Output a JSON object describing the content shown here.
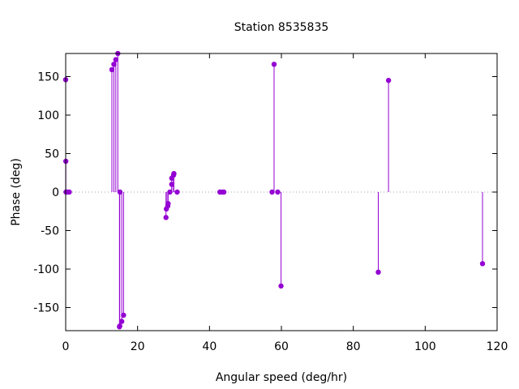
{
  "chart_data": {
    "type": "scatter",
    "style": "impulses-with-points",
    "title": "Station 8535835",
    "xlabel": "Angular speed (deg/hr)",
    "ylabel": "Phase (deg)",
    "xlim": [
      0,
      120
    ],
    "ylim": [
      -180,
      180
    ],
    "xticks": [
      0,
      20,
      40,
      60,
      80,
      100,
      120
    ],
    "yticks": [
      -150,
      -100,
      -50,
      0,
      50,
      100,
      150
    ],
    "zero_line": true,
    "grid": false,
    "legend": "none",
    "color": "#9400d3",
    "series": [
      {
        "points": [
          {
            "x": 0.0,
            "y": 146
          },
          {
            "x": 0.04,
            "y": 40
          },
          {
            "x": 0.08,
            "y": 0
          },
          {
            "x": 0.5,
            "y": 0
          },
          {
            "x": 1.0,
            "y": 0
          },
          {
            "x": 12.85,
            "y": 159
          },
          {
            "x": 13.4,
            "y": 166
          },
          {
            "x": 13.94,
            "y": 172
          },
          {
            "x": 14.5,
            "y": 180
          },
          {
            "x": 14.96,
            "y": -175
          },
          {
            "x": 15.04,
            "y": -174
          },
          {
            "x": 15.1,
            "y": 0
          },
          {
            "x": 15.6,
            "y": -168
          },
          {
            "x": 16.1,
            "y": -160
          },
          {
            "x": 27.9,
            "y": -33
          },
          {
            "x": 28.0,
            "y": -22
          },
          {
            "x": 28.4,
            "y": -18
          },
          {
            "x": 28.5,
            "y": -15
          },
          {
            "x": 28.98,
            "y": 0
          },
          {
            "x": 29.5,
            "y": 10
          },
          {
            "x": 29.5,
            "y": 18
          },
          {
            "x": 30.0,
            "y": 22
          },
          {
            "x": 30.1,
            "y": 24
          },
          {
            "x": 31.0,
            "y": 0
          },
          {
            "x": 42.9,
            "y": 0
          },
          {
            "x": 43.5,
            "y": 0
          },
          {
            "x": 44.0,
            "y": 0
          },
          {
            "x": 57.4,
            "y": 0
          },
          {
            "x": 57.97,
            "y": 166
          },
          {
            "x": 58.98,
            "y": 0
          },
          {
            "x": 59.9,
            "y": -122
          },
          {
            "x": 86.95,
            "y": -104
          },
          {
            "x": 89.8,
            "y": 145
          },
          {
            "x": 115.94,
            "y": -93
          }
        ]
      }
    ]
  }
}
